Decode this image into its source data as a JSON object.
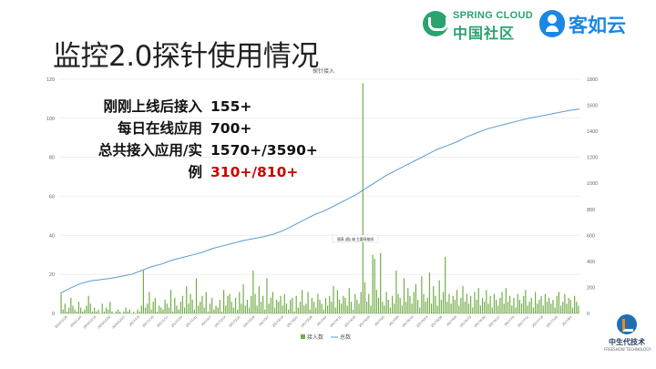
{
  "slide": {
    "title": "监控2.0探针使用情况"
  },
  "logos": {
    "spring_cloud_en": "SPRING CLOUD",
    "spring_cloud_cn": "中国社区",
    "keruyun": "客如云",
    "bottom_name": "中生代技术",
    "bottom_sub": "FREESHOW TECHNOLOGY"
  },
  "info": [
    {
      "label": "刚刚上线后接入",
      "value": "155+",
      "highlight": false
    },
    {
      "label": "每日在线应用",
      "value": "700+",
      "highlight": false
    },
    {
      "label": "总共接入应用/实",
      "value": "1570+/3590+",
      "highlight": false
    },
    {
      "label": "例",
      "value": "310+/810+",
      "highlight": true
    }
  ],
  "colors": {
    "bar": "#70ad47",
    "line": "#5b9bd5",
    "highlight": "#cc0000"
  },
  "chart_data": {
    "type": "bar",
    "title": "",
    "annotation_top": "探针接入",
    "tooltip": "图表 (图) 轴 主要网格线",
    "ylim_left": [
      0,
      120
    ],
    "yticks_left": [
      0,
      20,
      40,
      60,
      80,
      100,
      120
    ],
    "ylim_right": [
      0,
      1800
    ],
    "yticks_right": [
      0,
      200,
      400,
      600,
      800,
      1000,
      1200,
      1400,
      1600,
      1800
    ],
    "xticks": [
      "2016/11/29",
      "2016/12/6",
      "2016/12/13",
      "2016/12/20",
      "2016/12/27",
      "2017/1/3",
      "2017/1/10",
      "2017/1/17",
      "2017/1/24",
      "2017/1/31",
      "2017/2/7",
      "2017/2/14",
      "2017/2/21",
      "2017/2/28",
      "2017/3/7",
      "2017/3/14",
      "2017/3/21",
      "2017/3/28",
      "2017/4/4",
      "2017/4/11",
      "2017/4/18",
      "2017/4/25",
      "2017/5/2",
      "2017/5/9",
      "2017/5/16",
      "2017/5/23",
      "2017/5/30",
      "2017/6/6",
      "2017/6/13",
      "2017/6/20",
      "2017/6/27",
      "2017/7/4",
      "2017/7/11",
      "2017/7/18",
      "2017/7/25",
      "2017/8/1"
    ],
    "series": [
      {
        "name": "接入数",
        "type": "bar",
        "values": [
          10,
          2,
          5,
          1,
          3,
          8,
          4,
          2,
          1,
          6,
          3,
          1,
          2,
          4,
          9,
          5,
          1,
          3,
          1,
          2,
          0,
          5,
          1,
          3,
          2,
          6,
          1,
          0,
          1,
          2,
          1,
          0,
          1,
          3,
          1,
          2,
          0,
          1,
          0,
          2,
          1,
          4,
          22,
          3,
          5,
          11,
          2,
          6,
          8,
          1,
          4,
          3,
          2,
          7,
          5,
          3,
          12,
          1,
          8,
          4,
          2,
          6,
          9,
          3,
          14,
          5,
          10,
          7,
          2,
          18,
          4,
          6,
          9,
          3,
          11,
          1,
          5,
          8,
          2,
          4,
          3,
          7,
          1,
          12,
          4,
          9,
          10,
          6,
          3,
          8,
          2,
          11,
          5,
          15,
          4,
          7,
          3,
          9,
          22,
          10,
          4,
          14,
          6,
          9,
          2,
          18,
          5,
          8,
          11,
          3,
          7,
          6,
          9,
          4,
          10,
          5,
          2,
          7,
          8,
          1,
          9,
          3,
          6,
          12,
          4,
          5,
          11,
          2,
          8,
          6,
          3,
          10,
          7,
          5,
          2,
          8,
          4,
          9,
          6,
          14,
          3,
          12,
          7,
          5,
          9,
          8,
          4,
          13,
          6,
          2,
          10,
          7,
          5,
          11,
          118,
          16,
          6,
          10,
          4,
          30,
          28,
          12,
          8,
          31,
          6,
          4,
          11,
          7,
          3,
          9,
          5,
          22,
          10,
          8,
          4,
          18,
          6,
          13,
          9,
          5,
          11,
          15,
          7,
          3,
          19,
          10,
          6,
          8,
          21,
          5,
          14,
          9,
          4,
          17,
          7,
          11,
          29,
          6,
          10,
          5,
          9,
          7,
          12,
          4,
          8,
          14,
          6,
          10,
          5,
          9,
          3,
          11,
          7,
          13,
          4,
          8,
          6,
          12,
          5,
          9,
          3,
          10,
          7,
          4,
          8,
          11,
          5,
          13,
          6,
          9,
          4,
          8,
          3,
          10,
          7,
          5,
          9,
          12,
          4,
          6,
          8,
          3,
          11,
          5,
          7,
          9,
          4,
          10,
          6,
          8,
          5,
          7,
          3,
          9,
          11,
          4,
          6,
          10,
          5,
          8,
          7,
          3,
          9,
          6,
          4
        ]
      },
      {
        "name": "总数",
        "type": "line",
        "axis": "right",
        "values": [
          155,
          195,
          230,
          250,
          260,
          270,
          285,
          300,
          330,
          360,
          380,
          410,
          430,
          450,
          470,
          500,
          520,
          540,
          560,
          575,
          590,
          610,
          640,
          680,
          720,
          760,
          790,
          830,
          870,
          910,
          960,
          1010,
          1060,
          1100,
          1140,
          1180,
          1220,
          1260,
          1290,
          1320,
          1360,
          1390,
          1420,
          1440,
          1460,
          1480,
          1500,
          1515,
          1530,
          1545,
          1560,
          1570
        ]
      }
    ],
    "legend": [
      "接入数",
      "总数"
    ]
  }
}
